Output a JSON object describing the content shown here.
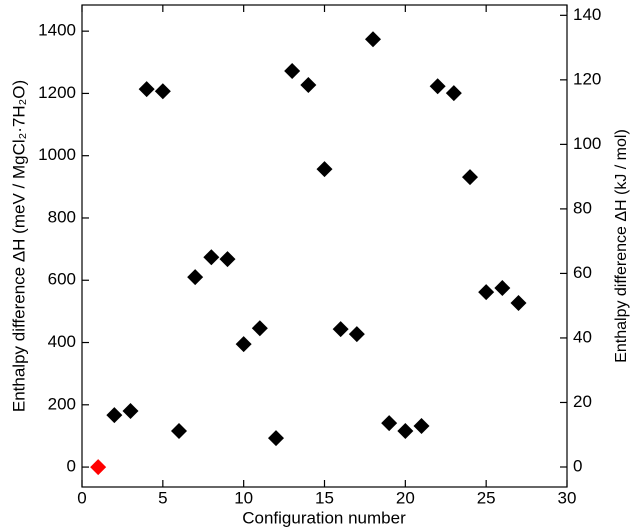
{
  "chart_data": {
    "type": "scatter",
    "xlabel": "Configuration number",
    "ylabel": "Enthalpy difference ΔH (meV / MgCl₂·7H₂O)",
    "y2label": "Enthalpy difference ΔH (kJ / mol)",
    "x": [
      1,
      2,
      3,
      4,
      5,
      6,
      7,
      8,
      9,
      10,
      11,
      12,
      13,
      14,
      15,
      16,
      17,
      18,
      19,
      20,
      21,
      22,
      23,
      24,
      25,
      26,
      27
    ],
    "values": [
      0,
      167,
      180,
      1214,
      1207,
      116,
      610,
      674,
      668,
      395,
      446,
      93,
      1272,
      1227,
      957,
      443,
      427,
      1374,
      141,
      116,
      132,
      1223,
      1201,
      931,
      562,
      575,
      527
    ],
    "colors": [
      "#ff0000",
      "#000000",
      "#000000",
      "#000000",
      "#000000",
      "#000000",
      "#000000",
      "#000000",
      "#000000",
      "#000000",
      "#000000",
      "#000000",
      "#000000",
      "#000000",
      "#000000",
      "#000000",
      "#000000",
      "#000000",
      "#000000",
      "#000000",
      "#000000",
      "#000000",
      "#000000",
      "#000000",
      "#000000",
      "#000000",
      "#000000"
    ],
    "marker": "diamond",
    "xlim": [
      0,
      30
    ],
    "xticks": [
      0,
      5,
      10,
      15,
      20,
      25,
      30
    ],
    "ylim": [
      -64,
      1484
    ],
    "yticks": [
      0,
      200,
      400,
      600,
      800,
      1000,
      1200,
      1400
    ],
    "y2lim": [
      -6.2,
      143.2
    ],
    "y2ticks": [
      0,
      20,
      40,
      60,
      80,
      100,
      120,
      140
    ]
  }
}
